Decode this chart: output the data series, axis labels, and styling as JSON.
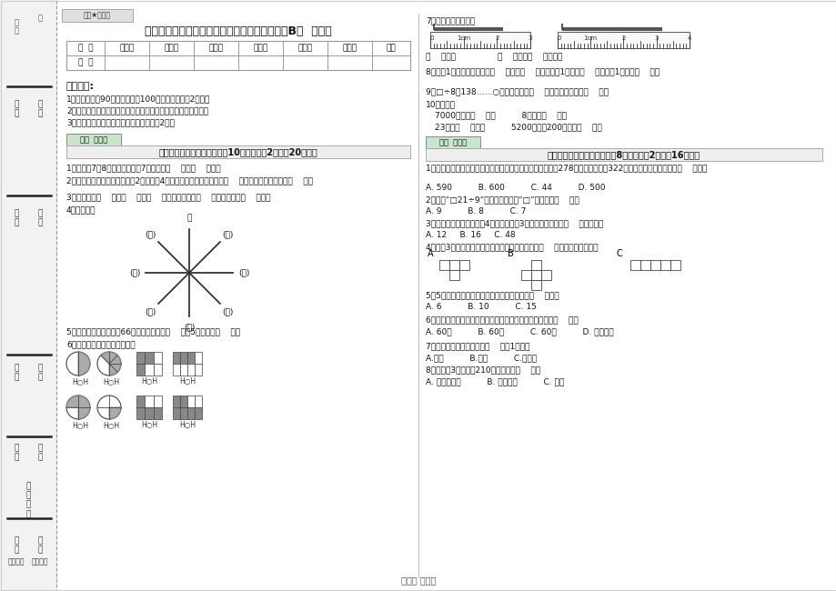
{
  "bg_color": "#ffffff",
  "title": "上海教育版三年级数学上学期全真模拟考试试卷B卷  附解析",
  "watermark": "绝密★启用前",
  "table_headers": [
    "题  号",
    "填空题",
    "选择题",
    "判断题",
    "计算题",
    "综合题",
    "应用题",
    "总分"
  ],
  "table_row": [
    "得  分",
    "",
    "",
    "",
    "",
    "",
    "",
    ""
  ],
  "section1_title": "考试须知:",
  "notes": [
    "1、考试时间：90分钟，满分为100分（含卷面分刃2分）。",
    "2、请首先按要求在试卷的指定位置填写您的姓名、班级、学号。",
    "3、不要在试卷上乱写乱画，卷面不整洁手2分。"
  ],
  "section2_label": "得分  评卷人",
  "section2_title": "一、用心思考，正确填空（入10小题，每题2分，入20分）。",
  "q1": "1、时钟在7和8之间，分针指共7，这时是（    ）时（    ）分。",
  "q2": "2、劳动课上做纸花，红红做了2朵纸花，4朵蓝花，红花占纸花总数的（    ），蓝花占纸花总数的（    ）。",
  "q3": "3、你出生于（    ）年（    ）月（    ）日，那一年是（    ）年，全年有（    ）天。",
  "q4": "4、填一填。",
  "q5": "5、把一根绳子平均分成66份，每份是它的（    ），5份是它的（    ）。",
  "q6": "6、看图写分数，并比较大小。",
  "right_q7": "7、量出钉子的长度。",
  "right_q7b": "（    ）毫米                （    ）厘米（    ）毫米。",
  "right_q8": "8、分酈1小格，秒针正好走（    ），是（    ）秒。分酈1大格是（    ），时酈1大格是（    ）。",
  "right_q9": "9、□÷8＝138……○，余数最大值（    ），这时被除数是（    ）。",
  "right_q10": "10、换算。",
  "right_q10a": "7000千克＝（    ）吨          8千克＝（    ）克",
  "right_q10b": "23吨＝（    ）千克          5200千克－200千克＝（    ）吨",
  "right_section2_label": "得分  评卷人",
  "right_section2_title": "二、反复比较，慎重选择（兩8小题，每题2分，入16分）。",
  "right_q1": "1、广州新电视塔是广州市目前最高的建筑，它比中信大厦高278米，中信大厦高322米，那么广州新电视塔高（    ）米。",
  "right_q1a": "A. 590          B. 600          C. 44          D. 500",
  "right_q2": "2、要使“□21÷9”的商是三位数，“□”里只能填（    ）。",
  "right_q2a": "A. 9          B. 8          C. 7",
  "right_q3": "3、一个长方形花坛的宽是4米，长是宽的3倍，花坛的面积是（    ）平方米。",
  "right_q3a": "A. 12     B. 16     C. 48",
  "right_q4": "4、下具3个图形中，每个小正方形都一样大，那么（    ）图形的周长最长。",
  "right_q5": "5、5名同学打乒乓球，每两人打一场，共要打（    ）场。",
  "right_q5a": "A. 6          B. 10          C. 15",
  "right_q6": "6、时钟从上一个数字到相邻的下一个数字，经过的时间是（    ）。",
  "right_q6a": "A. 60秒          B. 60分          C. 60时          D. 无法确定",
  "right_q7q": "7、按农历计算，有的年份（    ）朄1个月。",
  "right_q7qa": "A.一定          B.可能          C.不可能",
  "right_q8q": "8、爸爸、3小时行了210千米，他是（    ）。",
  "right_q8qa": "A. 乘公共汽车          B. 骑自行车          C. 步行",
  "footer": "第１页 八４页",
  "page_color": "#f5f5f5",
  "border_color": "#cccccc",
  "table_border": "#999999",
  "green_label_bg": "#c8e6c9",
  "watermark_bg": "#e0e0e0"
}
